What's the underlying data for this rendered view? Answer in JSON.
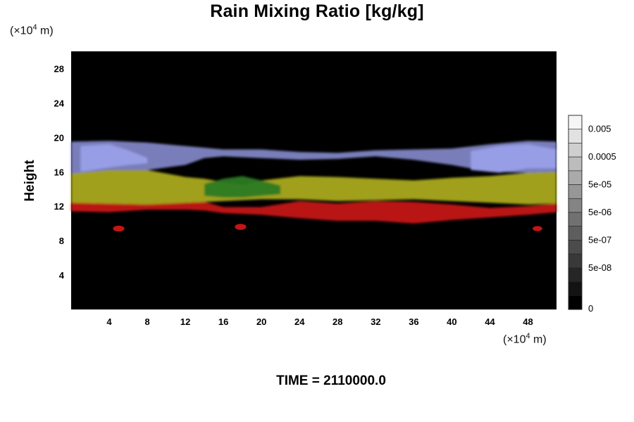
{
  "chart_data": {
    "type": "heatmap",
    "title": "Rain Mixing Ratio [kg/kg]",
    "ylabel": "Height",
    "xlabel": "",
    "x_unit": {
      "prefix": "(×10",
      "exp": "4",
      "suffix": " m)"
    },
    "y_unit": {
      "prefix": "(×10",
      "exp": "4",
      "suffix": " m)"
    },
    "xlim": [
      0,
      51
    ],
    "ylim": [
      0,
      30
    ],
    "x_ticks": [
      4,
      8,
      12,
      16,
      20,
      24,
      28,
      32,
      36,
      40,
      44,
      48
    ],
    "y_ticks": [
      4,
      8,
      12,
      16,
      20,
      24,
      28
    ],
    "colorbar": {
      "labels": [
        "0.005",
        "0.0005",
        "5e-05",
        "5e-06",
        "5e-07",
        "5e-08",
        "0"
      ],
      "levels": 14
    },
    "footer": "TIME = 2110000.0",
    "layers": [
      {
        "name": "red",
        "color": "#c41414",
        "top": [
          [
            0,
            12.4
          ],
          [
            4,
            12.3
          ],
          [
            8,
            12.2
          ],
          [
            12,
            12.4
          ],
          [
            14,
            12.5
          ],
          [
            16,
            11.9
          ],
          [
            20,
            11.9
          ],
          [
            24,
            12.6
          ],
          [
            28,
            12.3
          ],
          [
            32,
            12.6
          ],
          [
            36,
            12.5
          ],
          [
            40,
            12.2
          ],
          [
            44,
            11.8
          ],
          [
            48,
            12.0
          ],
          [
            51,
            12.3
          ]
        ],
        "bottom": [
          [
            0,
            11.4
          ],
          [
            4,
            11.3
          ],
          [
            8,
            11.6
          ],
          [
            12,
            11.6
          ],
          [
            14,
            11.5
          ],
          [
            16,
            11.2
          ],
          [
            20,
            11.0
          ],
          [
            24,
            10.6
          ],
          [
            28,
            10.3
          ],
          [
            32,
            10.3
          ],
          [
            36,
            10.0
          ],
          [
            40,
            10.4
          ],
          [
            44,
            10.7
          ],
          [
            48,
            11.0
          ],
          [
            51,
            11.3
          ]
        ]
      },
      {
        "name": "yellow",
        "color": "#a9a91c",
        "top": [
          [
            0,
            15.8
          ],
          [
            4,
            16.2
          ],
          [
            8,
            16.2
          ],
          [
            12,
            15.4
          ],
          [
            14,
            15.2
          ],
          [
            16,
            14.8
          ],
          [
            18,
            14.5
          ],
          [
            20,
            15.0
          ],
          [
            24,
            15.5
          ],
          [
            28,
            15.4
          ],
          [
            32,
            15.2
          ],
          [
            36,
            15.0
          ],
          [
            40,
            15.3
          ],
          [
            44,
            15.5
          ],
          [
            48,
            15.9
          ],
          [
            51,
            16.0
          ]
        ],
        "bottom": [
          [
            0,
            12.4
          ],
          [
            4,
            12.3
          ],
          [
            8,
            12.2
          ],
          [
            12,
            12.4
          ],
          [
            14,
            12.5
          ],
          [
            16,
            12.6
          ],
          [
            20,
            12.8
          ],
          [
            24,
            12.8
          ],
          [
            28,
            12.6
          ],
          [
            32,
            12.7
          ],
          [
            36,
            12.8
          ],
          [
            40,
            12.6
          ],
          [
            44,
            12.4
          ],
          [
            48,
            12.2
          ],
          [
            51,
            12.3
          ]
        ]
      },
      {
        "name": "green",
        "color": "#2c7a22",
        "top": [
          [
            14,
            14.6
          ],
          [
            16,
            15.2
          ],
          [
            18,
            15.5
          ],
          [
            20,
            15.0
          ],
          [
            22,
            14.4
          ]
        ],
        "bottom": [
          [
            14,
            13.2
          ],
          [
            16,
            13.0
          ],
          [
            18,
            13.0
          ],
          [
            20,
            13.2
          ],
          [
            22,
            13.4
          ]
        ]
      },
      {
        "name": "blue",
        "color": "#7f85c4",
        "top": [
          [
            0,
            19.5
          ],
          [
            4,
            19.6
          ],
          [
            8,
            19.4
          ],
          [
            12,
            19.0
          ],
          [
            14,
            18.8
          ],
          [
            16,
            18.6
          ],
          [
            20,
            18.6
          ],
          [
            24,
            18.3
          ],
          [
            28,
            18.2
          ],
          [
            32,
            18.5
          ],
          [
            36,
            18.6
          ],
          [
            40,
            18.7
          ],
          [
            44,
            19.2
          ],
          [
            48,
            19.6
          ],
          [
            51,
            19.5
          ]
        ],
        "bottom": [
          [
            0,
            15.8
          ],
          [
            4,
            16.2
          ],
          [
            8,
            16.2
          ],
          [
            12,
            16.8
          ],
          [
            14,
            17.6
          ],
          [
            16,
            17.8
          ],
          [
            20,
            17.6
          ],
          [
            24,
            17.4
          ],
          [
            28,
            17.5
          ],
          [
            32,
            17.8
          ],
          [
            36,
            17.4
          ],
          [
            40,
            16.8
          ],
          [
            44,
            16.0
          ],
          [
            48,
            15.9
          ],
          [
            51,
            16.0
          ]
        ]
      },
      {
        "name": "blue-bright",
        "color": "#9aa0e8",
        "top": [
          [
            1,
            19.0
          ],
          [
            4,
            19.2
          ],
          [
            6,
            18.5
          ],
          [
            8,
            17.6
          ]
        ],
        "bottom": [
          [
            1,
            16.0
          ],
          [
            4,
            16.5
          ],
          [
            6,
            16.8
          ],
          [
            8,
            17.0
          ]
        ]
      },
      {
        "name": "blue-bright-right",
        "color": "#9aa0e8",
        "top": [
          [
            42,
            18.4
          ],
          [
            45,
            19.0
          ],
          [
            48,
            19.2
          ],
          [
            51,
            18.6
          ]
        ],
        "bottom": [
          [
            42,
            16.2
          ],
          [
            45,
            15.9
          ],
          [
            48,
            16.4
          ],
          [
            51,
            16.4
          ]
        ]
      }
    ],
    "blobs": [
      {
        "x": 5.0,
        "y": 9.4,
        "rx": 0.6,
        "ry": 0.35,
        "color": "#c41414"
      },
      {
        "x": 17.8,
        "y": 9.6,
        "rx": 0.6,
        "ry": 0.35,
        "color": "#c41414"
      },
      {
        "x": 49.0,
        "y": 9.4,
        "rx": 0.5,
        "ry": 0.3,
        "color": "#c41414"
      }
    ]
  }
}
